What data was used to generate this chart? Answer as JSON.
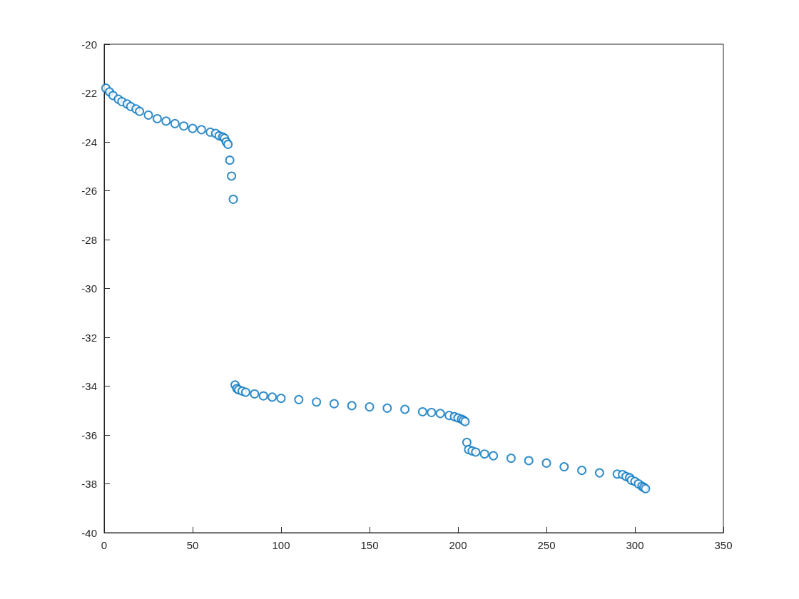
{
  "chart_data": {
    "type": "scatter",
    "marker": "circle",
    "grid": false,
    "xlim": [
      0,
      350
    ],
    "xticks": [
      0,
      50,
      100,
      150,
      200,
      250,
      300,
      350
    ],
    "ylim": [
      -40,
      -20
    ],
    "yticks": [
      -40,
      -38,
      -36,
      -34,
      -32,
      -30,
      -28,
      -26,
      -24,
      -22,
      -20
    ],
    "series": [
      {
        "color": "#0072bd",
        "x": [
          1,
          3,
          5,
          8,
          10,
          13,
          15,
          18,
          20,
          25,
          30,
          35,
          40,
          45,
          50,
          55,
          60,
          63,
          65,
          67,
          68,
          69,
          70,
          71,
          72,
          73,
          74,
          75,
          76,
          78,
          80,
          85,
          90,
          95,
          100,
          110,
          120,
          130,
          140,
          150,
          160,
          170,
          180,
          185,
          190,
          195,
          198,
          200,
          202,
          203,
          204,
          205,
          206,
          208,
          210,
          215,
          220,
          230,
          240,
          250,
          260,
          270,
          280,
          290,
          293,
          295,
          297,
          298,
          300,
          302,
          304,
          305,
          306
        ],
        "values": [
          -21.8,
          -21.95,
          -22.1,
          -22.25,
          -22.35,
          -22.45,
          -22.55,
          -22.65,
          -22.75,
          -22.9,
          -23.05,
          -23.15,
          -23.25,
          -23.35,
          -23.45,
          -23.5,
          -23.6,
          -23.65,
          -23.75,
          -23.8,
          -23.85,
          -24.0,
          -24.1,
          -24.75,
          -25.4,
          -26.35,
          -33.95,
          -34.1,
          -34.15,
          -34.2,
          -34.25,
          -34.32,
          -34.4,
          -34.45,
          -34.5,
          -34.55,
          -34.65,
          -34.72,
          -34.8,
          -34.85,
          -34.9,
          -34.95,
          -35.05,
          -35.08,
          -35.12,
          -35.2,
          -35.25,
          -35.3,
          -35.35,
          -35.4,
          -35.45,
          -36.3,
          -36.6,
          -36.65,
          -36.7,
          -36.78,
          -36.85,
          -36.95,
          -37.05,
          -37.15,
          -37.3,
          -37.45,
          -37.55,
          -37.6,
          -37.62,
          -37.7,
          -37.75,
          -37.85,
          -37.9,
          -38.0,
          -38.1,
          -38.15,
          -38.2
        ]
      }
    ]
  }
}
